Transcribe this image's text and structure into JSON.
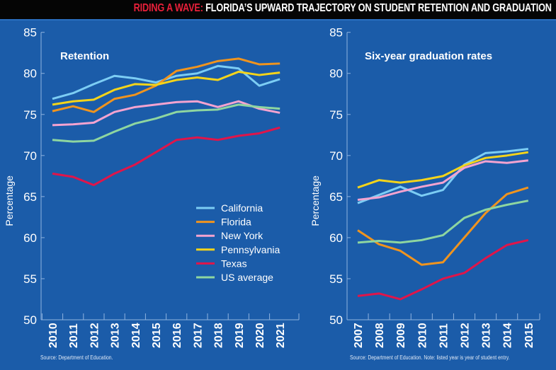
{
  "header": {
    "title_highlight": "RIDING A WAVE:",
    "title_rest": " FLORIDA’S UPWARD TRAJECTORY ON STUDENT RETENTION AND GRADUATION"
  },
  "colors": {
    "California": "#7ccdf4",
    "Florida": "#f0941e",
    "New York": "#f4a3d0",
    "Pennsylvania": "#f5d41a",
    "Texas": "#e0154a",
    "US average": "#8ed6a0",
    "background": "#1b5ca9"
  },
  "chart_data": [
    {
      "type": "line",
      "title": "Retention",
      "ylabel": "Percentage",
      "xlabel": "",
      "ylim": [
        50,
        85
      ],
      "yticks": [
        50,
        55,
        60,
        65,
        70,
        75,
        80,
        85
      ],
      "x": [
        "2010",
        "2011",
        "2012",
        "2013",
        "2014",
        "2015",
        "2016",
        "2017",
        "2018",
        "2019",
        "2020",
        "2021"
      ],
      "legend": "center-right",
      "series": [
        {
          "name": "California",
          "values": [
            76.9,
            77.6,
            78.7,
            79.7,
            79.4,
            78.9,
            79.7,
            80.0,
            80.9,
            80.6,
            78.5,
            79.3
          ]
        },
        {
          "name": "Florida",
          "values": [
            75.4,
            76.0,
            75.3,
            76.9,
            77.4,
            78.5,
            80.3,
            80.8,
            81.5,
            81.8,
            81.1,
            81.2
          ]
        },
        {
          "name": "New York",
          "values": [
            73.7,
            73.8,
            74.0,
            75.3,
            75.9,
            76.2,
            76.5,
            76.6,
            75.9,
            76.6,
            75.7,
            75.2
          ]
        },
        {
          "name": "Pennsylvania",
          "values": [
            76.2,
            76.6,
            76.8,
            78.0,
            78.7,
            78.6,
            79.2,
            79.5,
            79.2,
            80.2,
            79.8,
            80.1
          ]
        },
        {
          "name": "Texas",
          "values": [
            67.8,
            67.4,
            66.4,
            67.8,
            68.9,
            70.4,
            71.9,
            72.2,
            71.9,
            72.4,
            72.7,
            73.4
          ]
        },
        {
          "name": "US average",
          "values": [
            71.9,
            71.7,
            71.8,
            72.9,
            73.9,
            74.5,
            75.3,
            75.5,
            75.6,
            76.2,
            75.9,
            75.7
          ]
        }
      ],
      "source": "Source: Department of Education."
    },
    {
      "type": "line",
      "title": "Six-year graduation rates",
      "ylabel": "Percentage",
      "xlabel": "",
      "ylim": [
        50,
        85
      ],
      "yticks": [
        50,
        55,
        60,
        65,
        70,
        75,
        80,
        85
      ],
      "x": [
        "2007",
        "2008",
        "2009",
        "2010",
        "2011",
        "2012",
        "2013",
        "2014",
        "2015"
      ],
      "series": [
        {
          "name": "California",
          "values": [
            64.2,
            65.2,
            66.2,
            65.1,
            65.8,
            68.9,
            70.3,
            70.5,
            70.8
          ]
        },
        {
          "name": "Florida",
          "values": [
            60.9,
            59.2,
            58.4,
            56.7,
            57.0,
            60.0,
            63.0,
            65.3,
            66.1
          ]
        },
        {
          "name": "New York",
          "values": [
            64.6,
            64.9,
            65.6,
            66.2,
            66.7,
            68.5,
            69.3,
            69.1,
            69.4
          ]
        },
        {
          "name": "Pennsylvania",
          "values": [
            66.1,
            67.0,
            66.7,
            67.0,
            67.5,
            68.8,
            69.7,
            70.0,
            70.4
          ]
        },
        {
          "name": "Texas",
          "values": [
            52.9,
            53.2,
            52.5,
            53.7,
            55.0,
            55.7,
            57.5,
            59.1,
            59.7
          ]
        },
        {
          "name": "US average",
          "values": [
            59.4,
            59.6,
            59.4,
            59.7,
            60.3,
            62.4,
            63.4,
            64.0,
            64.5
          ]
        }
      ],
      "source": "Source: Department of Education. Note: listed year is year of student entry."
    }
  ]
}
